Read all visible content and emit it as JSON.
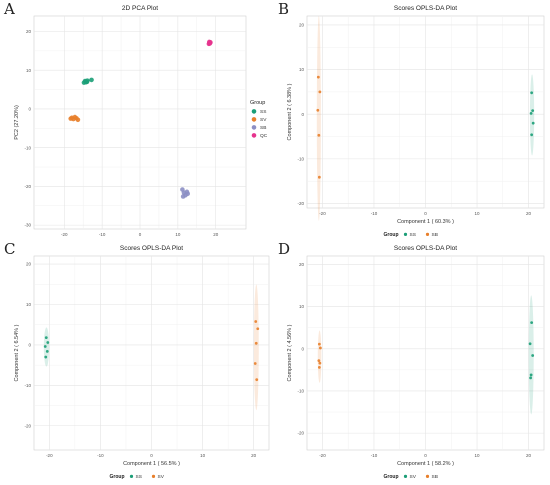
{
  "chart_data": [
    {
      "panel_label": "A",
      "type": "scatter",
      "title": "2D PCA Plot",
      "xlabel": "PC1 (31.22%)",
      "ylabel": "PC2 (27.20%)",
      "xlim": [
        -28,
        28
      ],
      "ylim": [
        -31,
        24
      ],
      "xticks": [
        -20,
        -10,
        0,
        10,
        20
      ],
      "yticks": [
        -30,
        -20,
        -10,
        0,
        10,
        20
      ],
      "xtick_labels": [
        "-20",
        "-10",
        "0",
        "10",
        "20"
      ],
      "ytick_labels": [
        "-30",
        "-20",
        "-10",
        "0",
        "10",
        "20"
      ],
      "grid": true,
      "ellipses": false,
      "legend": {
        "title": "Group",
        "placement": "right"
      },
      "series": [
        {
          "name": "SS",
          "color": "#1b9e77",
          "x": [
            -14.5,
            -14.0,
            -14.8,
            -12.8,
            -13.9,
            -14.3
          ],
          "y": [
            7.2,
            7.0,
            6.8,
            7.5,
            7.3,
            6.9
          ]
        },
        {
          "name": "SV",
          "color": "#e87f2b",
          "x": [
            -18.0,
            -17.6,
            -16.8,
            -16.4,
            -17.2,
            -18.3
          ],
          "y": [
            -2.3,
            -2.6,
            -2.4,
            -2.8,
            -2.1,
            -2.5
          ]
        },
        {
          "name": "SB",
          "color": "#8c8fc4",
          "x": [
            11.2,
            11.6,
            12.0,
            12.4,
            11.4,
            12.6
          ],
          "y": [
            -20.8,
            -21.6,
            -22.3,
            -21.4,
            -22.6,
            -21.9
          ]
        },
        {
          "name": "QC",
          "color": "#e6338d",
          "x": [
            18.3,
            18.5,
            18.2,
            18.6,
            18.4
          ],
          "y": [
            17.3,
            17.0,
            16.8,
            17.2,
            16.9
          ]
        }
      ]
    },
    {
      "panel_label": "B",
      "type": "scatter",
      "title": "Scores OPLS-DA Plot",
      "xlabel": "Component 1 ( 60.3% )",
      "ylabel": "Component 2 ( 6.38% )",
      "xlim": [
        -23,
        23
      ],
      "ylim": [
        -21,
        22
      ],
      "xticks": [
        -20,
        -10,
        0,
        10,
        20
      ],
      "yticks": [
        -20,
        -10,
        0,
        10,
        20
      ],
      "xtick_labels": [
        "-20",
        "-10",
        "0",
        "10",
        "20"
      ],
      "ytick_labels": [
        "-20",
        "-10",
        "0",
        "10",
        "20"
      ],
      "grid": true,
      "ellipses": true,
      "legend": {
        "title": "Group",
        "placement": "bottom"
      },
      "series": [
        {
          "name": "SS",
          "color": "#1b9e77",
          "x": [
            20.6,
            20.8,
            20.5,
            20.9,
            20.6
          ],
          "y": [
            4.8,
            0.8,
            0.2,
            -2.0,
            -4.6
          ]
        },
        {
          "name": "SB",
          "color": "#e87f2b",
          "x": [
            -20.8,
            -20.5,
            -20.9,
            -20.7,
            -20.6
          ],
          "y": [
            8.3,
            5.0,
            0.9,
            -4.7,
            -14.1
          ]
        }
      ]
    },
    {
      "panel_label": "C",
      "type": "scatter",
      "title": "Scores OPLS-DA Plot",
      "xlabel": "Component 1 ( 56.5% )",
      "ylabel": "Component 2 ( 6.54% )",
      "xlim": [
        -23,
        23
      ],
      "ylim": [
        -26,
        22
      ],
      "xticks": [
        -20,
        -10,
        0,
        10,
        20
      ],
      "yticks": [
        -20,
        -10,
        0,
        10,
        20
      ],
      "xtick_labels": [
        "-20",
        "-10",
        "0",
        "10",
        "20"
      ],
      "ytick_labels": [
        "-20",
        "-10",
        "0",
        "10",
        "20"
      ],
      "grid": true,
      "ellipses": true,
      "legend": {
        "title": "Group",
        "placement": "bottom"
      },
      "series": [
        {
          "name": "SS",
          "color": "#1b9e77",
          "x": [
            -20.6,
            -20.3,
            -20.8,
            -20.4,
            -20.7
          ],
          "y": [
            1.8,
            0.6,
            -0.4,
            -1.6,
            -3.0
          ]
        },
        {
          "name": "SV",
          "color": "#e87f2b",
          "x": [
            20.4,
            20.8,
            20.5,
            20.3,
            20.6
          ],
          "y": [
            5.8,
            4.0,
            0.4,
            -4.6,
            -8.6
          ]
        }
      ]
    },
    {
      "panel_label": "D",
      "type": "scatter",
      "title": "Scores OPLS-DA Plot",
      "xlabel": "Component 1 ( 58.2% )",
      "ylabel": "Component 2 ( 4.56% )",
      "xlim": [
        -23,
        23
      ],
      "ylim": [
        -24,
        22
      ],
      "xticks": [
        -20,
        -10,
        0,
        10,
        20
      ],
      "yticks": [
        -20,
        -10,
        0,
        10,
        20
      ],
      "xtick_labels": [
        "-20",
        "-10",
        "0",
        "10",
        "20"
      ],
      "ytick_labels": [
        "-20",
        "-10",
        "0",
        "10",
        "20"
      ],
      "grid": true,
      "ellipses": true,
      "legend": {
        "title": "Group",
        "placement": "bottom"
      },
      "series": [
        {
          "name": "SV",
          "color": "#1b9e77",
          "x": [
            20.6,
            20.3,
            20.8,
            20.5,
            20.4
          ],
          "y": [
            6.2,
            1.2,
            -1.6,
            -6.2,
            -6.9
          ]
        },
        {
          "name": "SB",
          "color": "#e87f2b",
          "x": [
            -20.6,
            -20.4,
            -20.7,
            -20.5,
            -20.6
          ],
          "y": [
            1.1,
            0.2,
            -2.8,
            -3.4,
            -4.4
          ]
        }
      ]
    }
  ]
}
